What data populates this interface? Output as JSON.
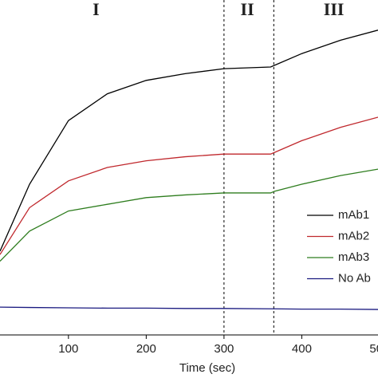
{
  "chart_data": {
    "type": "line",
    "x_label": "Time (sec)",
    "x": [
      12,
      50,
      100,
      150,
      200,
      250,
      300,
      360,
      365,
      400,
      450,
      498
    ],
    "series": [
      {
        "name": "mAb1",
        "color": "#000000",
        "values": [
          25,
          45,
          64,
          72,
          76,
          78,
          79.5,
          80,
          80.5,
          84,
          88,
          91
        ]
      },
      {
        "name": "mAb2",
        "color": "#c0282d",
        "values": [
          24,
          38,
          46,
          50,
          52,
          53.2,
          54,
          54,
          54.5,
          58,
          62,
          65
        ]
      },
      {
        "name": "mAb3",
        "color": "#2e7d1e",
        "values": [
          22,
          31,
          37,
          39,
          41,
          41.8,
          42.4,
          42.4,
          42.9,
          45,
          47.6,
          49.5
        ]
      },
      {
        "name": "No Ab",
        "color": "#1a1a80",
        "values": [
          8.3,
          8.2,
          8.1,
          8,
          8,
          7.9,
          7.9,
          7.8,
          7.8,
          7.7,
          7.7,
          7.6
        ]
      }
    ],
    "xlim": [
      12,
      498
    ],
    "xticks": [
      100,
      200,
      300,
      400,
      500
    ],
    "ylim": [
      0,
      100
    ],
    "vlines": [
      300,
      364
    ],
    "regions": [
      "I",
      "II",
      "III"
    ],
    "legend": "right"
  }
}
